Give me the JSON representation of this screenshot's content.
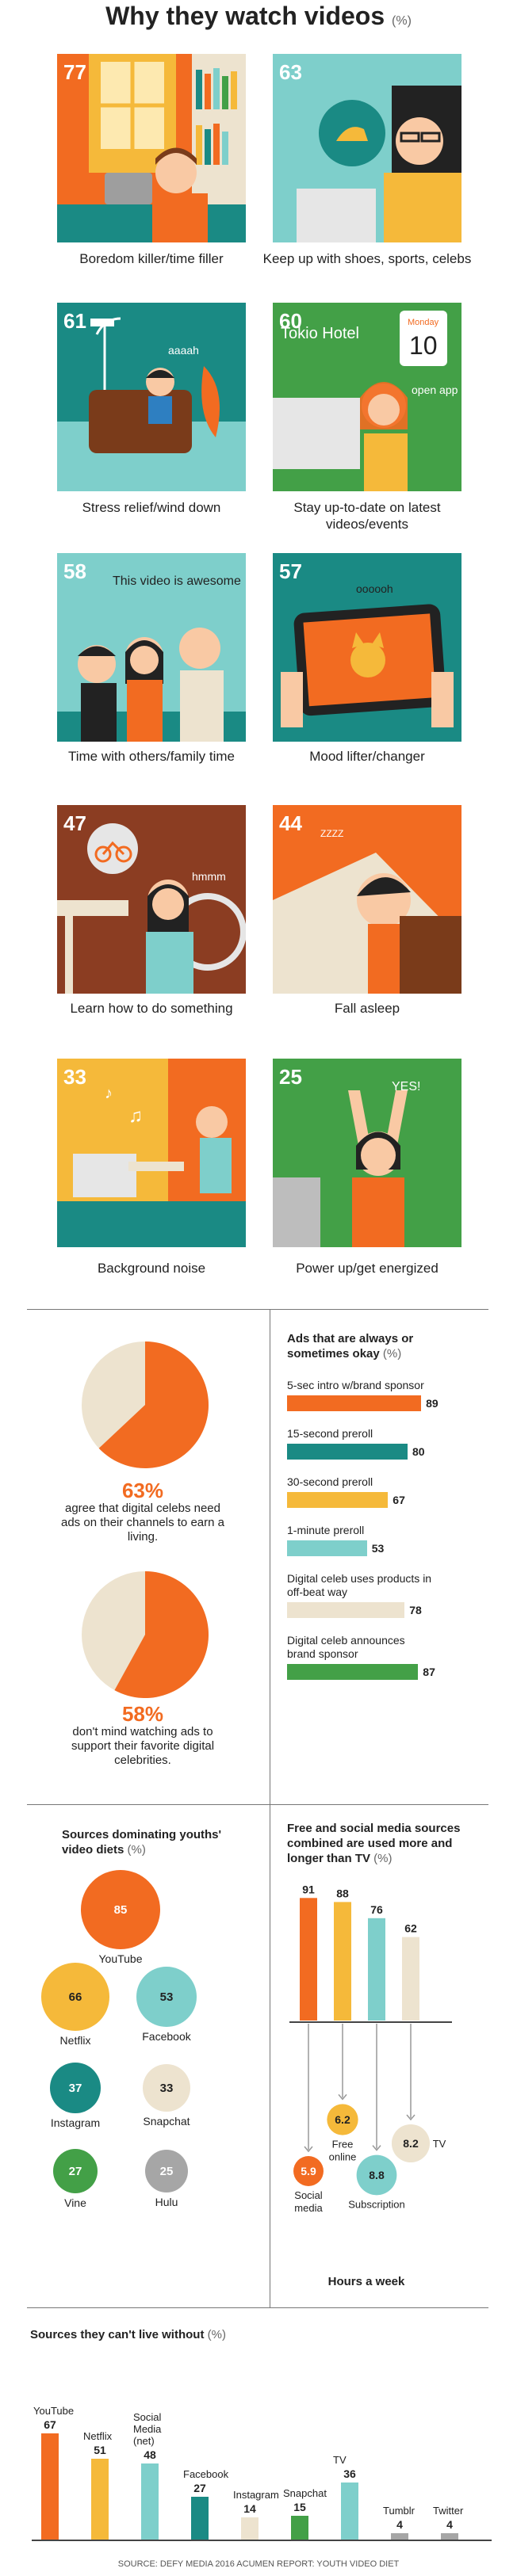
{
  "header": {
    "title": "Why they watch videos",
    "unit": "(%)"
  },
  "reasons": [
    {
      "value": 77,
      "label": "Boredom killer/time filler"
    },
    {
      "value": 63,
      "label": "Keep up with shoes, sports, celebs"
    },
    {
      "value": 61,
      "label": "Stress relief/wind down"
    },
    {
      "value": 60,
      "label": "Stay up-to-date on latest videos/events"
    },
    {
      "value": 58,
      "label": "Time with others/family time"
    },
    {
      "value": 57,
      "label": "Mood lifter/changer"
    },
    {
      "value": 47,
      "label": "Learn how to do something"
    },
    {
      "value": 44,
      "label": "Fall asleep"
    },
    {
      "value": 33,
      "label": "Background noise"
    },
    {
      "value": 25,
      "label": "Power up/get energized"
    }
  ],
  "tile_text": {
    "aaaah": "aaaah",
    "tokio_hotel": "Tokio Hotel",
    "monday": "Monday",
    "day": "10",
    "open_app": "open app",
    "awesome": "This video is awesome",
    "ooooh": "oooooh",
    "hmmm": "hmmm",
    "zzz": "ZZZZ",
    "yes": "YES!"
  },
  "celebs": {
    "pie1": {
      "value": 63,
      "pct": "63%",
      "text": "agree that digital celebs need ads on their channels to earn a living."
    },
    "pie2": {
      "value": 58,
      "pct": "58%",
      "text": "don't mind watching ads to support their favorite digital celebrities."
    }
  },
  "ads": {
    "title": "Ads that are always or sometimes okay",
    "unit": "(%)",
    "items": [
      {
        "label": "5-sec intro w/brand sponsor",
        "value": 89,
        "color": "#f26b21"
      },
      {
        "label": "15-second preroll",
        "value": 80,
        "color": "#1a8a84"
      },
      {
        "label": "30-second preroll",
        "value": 67,
        "color": "#f5b93a"
      },
      {
        "label": "1-minute preroll",
        "value": 53,
        "color": "#7ecfcb"
      },
      {
        "label": "Digital celeb uses products in off-beat way",
        "value": 78,
        "color": "#ede3cf"
      },
      {
        "label": "Digital celeb announces brand sponsor",
        "value": 87,
        "color": "#43a047"
      }
    ]
  },
  "sources": {
    "title": "Sources dominating youths' video diets",
    "unit": "(%)",
    "items": [
      {
        "name": "YouTube",
        "value": 85,
        "color": "#f26b21",
        "text_color": "#fff"
      },
      {
        "name": "Netflix",
        "value": 66,
        "color": "#f5b93a",
        "text_color": "#222"
      },
      {
        "name": "Facebook",
        "value": 53,
        "color": "#7ecfcb",
        "text_color": "#222"
      },
      {
        "name": "Instagram",
        "value": 37,
        "color": "#1a8a84",
        "text_color": "#fff"
      },
      {
        "name": "Snapchat",
        "value": 33,
        "color": "#ede3cf",
        "text_color": "#222"
      },
      {
        "name": "Vine",
        "value": 27,
        "color": "#43a047",
        "text_color": "#fff"
      },
      {
        "name": "Hulu",
        "value": 25,
        "color": "#a6a6a6",
        "text_color": "#fff"
      }
    ]
  },
  "social": {
    "title": "Free and social media sources combined are used more and longer than TV",
    "unit": "(%)",
    "hours_label": "Hours a week",
    "bars": [
      {
        "value": 91,
        "color": "#f26b21"
      },
      {
        "value": 88,
        "color": "#f5b93a"
      },
      {
        "value": 76,
        "color": "#7ecfcb"
      },
      {
        "value": 62,
        "color": "#ede3cf"
      }
    ],
    "hours": [
      {
        "name": "Social media",
        "value": 5.9,
        "color": "#f26b21",
        "text_color": "#fff"
      },
      {
        "name": "Free online",
        "value": 6.2,
        "color": "#f5b93a",
        "text_color": "#222"
      },
      {
        "name": "Subscription",
        "value": 8.8,
        "color": "#7ecfcb",
        "text_color": "#222"
      },
      {
        "name": "TV",
        "value": 8.2,
        "color": "#ede3cf",
        "text_color": "#222"
      }
    ]
  },
  "cant_live": {
    "title": "Sources they can't live without",
    "unit": "(%)",
    "items": [
      {
        "name": "YouTube",
        "value": 67,
        "color": "#f26b21"
      },
      {
        "name": "Netflix",
        "value": 51,
        "color": "#f5b93a"
      },
      {
        "name": "Social Media (net)",
        "value": 48,
        "color": "#7ecfcb"
      },
      {
        "name": "Facebook",
        "value": 27,
        "color": "#1a8a84"
      },
      {
        "name": "Instagram",
        "value": 14,
        "color": "#ede3cf"
      },
      {
        "name": "Snapchat",
        "value": 15,
        "color": "#43a047"
      },
      {
        "name": "TV",
        "value": 36,
        "color": "#7ecfcb"
      },
      {
        "name": "Tumblr",
        "value": 4,
        "color": "#a6a6a6"
      },
      {
        "name": "Twitter",
        "value": 4,
        "color": "#a6a6a6"
      }
    ]
  },
  "footer": {
    "source": "SOURCE: DEFY MEDIA 2016 ACUMEN REPORT: YOUTH VIDEO DIET"
  },
  "chart_data": [
    {
      "type": "bar",
      "title": "Why they watch videos (%)",
      "categories": [
        "Boredom killer/time filler",
        "Keep up with shoes, sports, celebs",
        "Stress relief/wind down",
        "Stay up-to-date on latest videos/events",
        "Time with others/family time",
        "Mood lifter/changer",
        "Learn how to do something",
        "Fall asleep",
        "Background noise",
        "Power up/get energized"
      ],
      "values": [
        77,
        63,
        61,
        60,
        58,
        57,
        47,
        44,
        33,
        25
      ]
    },
    {
      "type": "pie",
      "values": [
        63,
        37
      ]
    },
    {
      "type": "pie",
      "values": [
        58,
        42
      ]
    },
    {
      "type": "bar",
      "title": "Ads that are always or sometimes okay (%)",
      "categories": [
        "5-sec intro w/brand sponsor",
        "15-second preroll",
        "30-second preroll",
        "1-minute preroll",
        "Digital celeb uses products in off-beat way",
        "Digital celeb announces brand sponsor"
      ],
      "values": [
        89,
        80,
        67,
        53,
        78,
        87
      ],
      "xlim": [
        0,
        100
      ]
    },
    {
      "type": "scatter",
      "title": "Sources dominating youths' video diets (%)",
      "categories": [
        "YouTube",
        "Netflix",
        "Facebook",
        "Instagram",
        "Snapchat",
        "Vine",
        "Hulu"
      ],
      "values": [
        85,
        66,
        53,
        37,
        33,
        27,
        25
      ]
    },
    {
      "type": "bar",
      "title": "Free and social media sources combined are used more and longer than TV (%)",
      "categories": [
        "Social media",
        "Free online",
        "Subscription",
        "TV"
      ],
      "values": [
        91,
        88,
        76,
        62
      ],
      "ylim": [
        0,
        100
      ]
    },
    {
      "type": "scatter",
      "title": "Hours a week",
      "categories": [
        "Social media",
        "Free online",
        "Subscription",
        "TV"
      ],
      "values": [
        5.9,
        6.2,
        8.8,
        8.2
      ]
    },
    {
      "type": "bar",
      "title": "Sources they can't live without (%)",
      "categories": [
        "YouTube",
        "Netflix",
        "Social Media (net)",
        "Facebook",
        "Instagram",
        "Snapchat",
        "TV",
        "Tumblr",
        "Twitter"
      ],
      "values": [
        67,
        51,
        48,
        27,
        14,
        15,
        36,
        4,
        4
      ],
      "ylim": [
        0,
        100
      ]
    }
  ]
}
